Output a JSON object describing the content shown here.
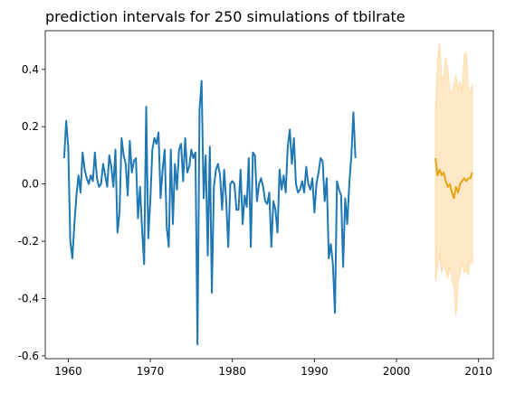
{
  "chart_data": {
    "type": "line",
    "title": "prediction intervals for 250 simulations of tbilrate",
    "xlabel": "",
    "ylabel": "",
    "xlim": [
      1957.2,
      2011.8
    ],
    "ylim": [
      -0.61,
      0.535
    ],
    "x_ticks": [
      1960,
      1970,
      1980,
      1990,
      2000,
      2010
    ],
    "y_ticks": [
      -0.6,
      -0.4,
      -0.2,
      0.0,
      0.2,
      0.4
    ],
    "y_tick_labels": [
      "-0.6",
      "-0.4",
      "-0.2",
      "0.0",
      "0.2",
      "0.4"
    ],
    "grid": false,
    "colors": {
      "history": "#1f77b4",
      "forecast": "#e8a317",
      "band": "#ffe6bf",
      "band_stroke": "#ffd9a0"
    },
    "series": [
      {
        "role": "history",
        "x_start": 1959.5,
        "step": 0.25,
        "values": [
          0.09,
          0.22,
          0.13,
          -0.2,
          -0.26,
          -0.14,
          -0.04,
          0.03,
          -0.03,
          0.11,
          0.05,
          0.02,
          0.0,
          0.03,
          0.01,
          0.11,
          0.02,
          -0.01,
          0.0,
          0.07,
          0.03,
          -0.01,
          0.1,
          0.06,
          -0.01,
          0.12,
          -0.17,
          -0.1,
          0.16,
          0.1,
          0.07,
          -0.04,
          0.15,
          0.04,
          0.08,
          0.09,
          -0.12,
          -0.01,
          -0.16,
          -0.28,
          0.27,
          -0.19,
          -0.06,
          0.12,
          0.16,
          0.14,
          0.18,
          -0.05,
          0.05,
          0.12,
          -0.15,
          -0.22,
          0.12,
          -0.14,
          0.07,
          -0.02,
          0.12,
          0.14,
          0.01,
          0.16,
          0.04,
          0.06,
          0.12,
          0.09,
          0.11,
          -0.56,
          0.26,
          0.36,
          -0.05,
          0.1,
          -0.25,
          0.13,
          -0.38,
          -0.01,
          0.05,
          0.07,
          0.03,
          -0.09,
          0.05,
          -0.06,
          -0.22,
          0.0,
          0.01,
          0.0,
          -0.09,
          -0.09,
          0.05,
          -0.14,
          -0.04,
          -0.08,
          0.09,
          -0.22,
          0.11,
          0.1,
          -0.06,
          0.0,
          0.02,
          -0.01,
          -0.06,
          -0.07,
          -0.03,
          -0.22,
          -0.06,
          -0.09,
          -0.17,
          0.05,
          -0.02,
          0.03,
          -0.03,
          0.13,
          0.19,
          0.07,
          0.16,
          0.0,
          -0.03,
          -0.02,
          0.01,
          -0.03,
          0.06,
          0.0,
          -0.02,
          0.02,
          -0.1,
          0.0,
          0.04,
          0.09,
          0.08,
          -0.06,
          0.02,
          -0.26,
          -0.21,
          -0.28,
          -0.45,
          0.01,
          -0.02,
          -0.04,
          -0.29,
          -0.05,
          -0.14,
          0.0,
          0.1,
          0.25,
          0.09
        ]
      },
      {
        "role": "forecast",
        "x_start": 2004.75,
        "step": 0.25,
        "values": [
          0.09,
          0.03,
          0.05,
          0.03,
          0.04,
          0.01,
          -0.01,
          0.0,
          -0.03,
          -0.05,
          -0.01,
          -0.03,
          0.0,
          0.01,
          0.02,
          0.01,
          0.02,
          0.02,
          0.04
        ]
      }
    ],
    "band": {
      "x_start": 2004.75,
      "step": 0.25,
      "upper": [
        0.26,
        0.43,
        0.49,
        0.38,
        0.36,
        0.44,
        0.4,
        0.33,
        0.31,
        0.35,
        0.38,
        0.33,
        0.36,
        0.32,
        0.45,
        0.46,
        0.34,
        0.31,
        0.35
      ],
      "lower": [
        -0.34,
        -0.29,
        -0.24,
        -0.31,
        -0.28,
        -0.3,
        -0.33,
        -0.29,
        -0.34,
        -0.36,
        -0.46,
        -0.34,
        -0.32,
        -0.27,
        -0.31,
        -0.3,
        -0.32,
        -0.26,
        -0.28
      ]
    }
  }
}
